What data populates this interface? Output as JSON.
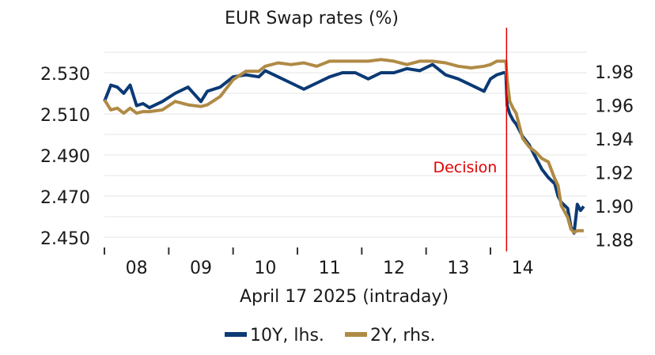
{
  "chart_data": {
    "type": "line",
    "title": "EUR Swap rates (%)",
    "xlabel": "April 17 2025 (intraday)",
    "x_ticks": [
      "08",
      "09",
      "10",
      "11",
      "12",
      "13",
      "14"
    ],
    "x_range_hours": [
      7.5,
      15.0
    ],
    "y_left": {
      "ticks": [
        "2.530",
        "2.510",
        "2.490",
        "2.470",
        "2.450"
      ],
      "range": [
        2.445,
        2.545
      ]
    },
    "y_right": {
      "ticks": [
        "1.98",
        "1.96",
        "1.94",
        "1.92",
        "1.90",
        "1.88"
      ],
      "range": [
        1.875,
        1.9975
      ]
    },
    "grid": true,
    "legend_position": "bottom",
    "annotation": {
      "text": "Decision",
      "x": 13.75,
      "color": "#e00000"
    },
    "series": [
      {
        "name": "10Y, lhs.",
        "axis": "left",
        "color": "#0b3a75",
        "points": [
          [
            7.5,
            2.516
          ],
          [
            7.6,
            2.524
          ],
          [
            7.7,
            2.523
          ],
          [
            7.8,
            2.52
          ],
          [
            7.9,
            2.524
          ],
          [
            8.0,
            2.514
          ],
          [
            8.1,
            2.515
          ],
          [
            8.2,
            2.513
          ],
          [
            8.4,
            2.516
          ],
          [
            8.6,
            2.52
          ],
          [
            8.8,
            2.523
          ],
          [
            9.0,
            2.516
          ],
          [
            9.1,
            2.521
          ],
          [
            9.3,
            2.523
          ],
          [
            9.5,
            2.528
          ],
          [
            9.7,
            2.529
          ],
          [
            9.9,
            2.528
          ],
          [
            10.0,
            2.531
          ],
          [
            10.2,
            2.528
          ],
          [
            10.4,
            2.525
          ],
          [
            10.6,
            2.522
          ],
          [
            10.8,
            2.525
          ],
          [
            11.0,
            2.528
          ],
          [
            11.2,
            2.53
          ],
          [
            11.4,
            2.53
          ],
          [
            11.6,
            2.527
          ],
          [
            11.8,
            2.53
          ],
          [
            12.0,
            2.53
          ],
          [
            12.2,
            2.532
          ],
          [
            12.4,
            2.531
          ],
          [
            12.6,
            2.534
          ],
          [
            12.8,
            2.529
          ],
          [
            13.0,
            2.527
          ],
          [
            13.2,
            2.524
          ],
          [
            13.4,
            2.521
          ],
          [
            13.5,
            2.527
          ],
          [
            13.6,
            2.529
          ],
          [
            13.7,
            2.53
          ],
          [
            13.74,
            2.53
          ],
          [
            13.76,
            2.514
          ],
          [
            13.8,
            2.51
          ],
          [
            13.85,
            2.507
          ],
          [
            13.9,
            2.505
          ],
          [
            14.0,
            2.499
          ],
          [
            14.1,
            2.495
          ],
          [
            14.2,
            2.489
          ],
          [
            14.3,
            2.483
          ],
          [
            14.4,
            2.479
          ],
          [
            14.5,
            2.476
          ],
          [
            14.55,
            2.47
          ],
          [
            14.6,
            2.467
          ],
          [
            14.7,
            2.464
          ],
          [
            14.75,
            2.455
          ],
          [
            14.8,
            2.452
          ],
          [
            14.85,
            2.466
          ],
          [
            14.9,
            2.463
          ],
          [
            14.95,
            2.465
          ]
        ]
      },
      {
        "name": "2Y, rhs.",
        "axis": "right",
        "color": "#b08a45",
        "points": [
          [
            7.5,
            1.963
          ],
          [
            7.6,
            1.957
          ],
          [
            7.7,
            1.958
          ],
          [
            7.8,
            1.955
          ],
          [
            7.9,
            1.958
          ],
          [
            8.0,
            1.955
          ],
          [
            8.1,
            1.956
          ],
          [
            8.2,
            1.956
          ],
          [
            8.4,
            1.957
          ],
          [
            8.6,
            1.962
          ],
          [
            8.8,
            1.96
          ],
          [
            9.0,
            1.959
          ],
          [
            9.1,
            1.96
          ],
          [
            9.3,
            1.965
          ],
          [
            9.5,
            1.975
          ],
          [
            9.7,
            1.98
          ],
          [
            9.9,
            1.98
          ],
          [
            10.0,
            1.983
          ],
          [
            10.2,
            1.985
          ],
          [
            10.4,
            1.984
          ],
          [
            10.6,
            1.985
          ],
          [
            10.8,
            1.983
          ],
          [
            11.0,
            1.986
          ],
          [
            11.2,
            1.986
          ],
          [
            11.4,
            1.986
          ],
          [
            11.6,
            1.986
          ],
          [
            11.8,
            1.987
          ],
          [
            12.0,
            1.986
          ],
          [
            12.2,
            1.984
          ],
          [
            12.4,
            1.986
          ],
          [
            12.6,
            1.986
          ],
          [
            12.8,
            1.985
          ],
          [
            13.0,
            1.983
          ],
          [
            13.2,
            1.982
          ],
          [
            13.4,
            1.983
          ],
          [
            13.5,
            1.984
          ],
          [
            13.6,
            1.986
          ],
          [
            13.7,
            1.986
          ],
          [
            13.74,
            1.986
          ],
          [
            13.76,
            1.975
          ],
          [
            13.8,
            1.962
          ],
          [
            13.85,
            1.958
          ],
          [
            13.9,
            1.955
          ],
          [
            14.0,
            1.94
          ],
          [
            14.1,
            1.935
          ],
          [
            14.2,
            1.932
          ],
          [
            14.3,
            1.928
          ],
          [
            14.4,
            1.926
          ],
          [
            14.5,
            1.916
          ],
          [
            14.55,
            1.912
          ],
          [
            14.6,
            1.9
          ],
          [
            14.7,
            1.893
          ],
          [
            14.75,
            1.886
          ],
          [
            14.8,
            1.884
          ],
          [
            14.85,
            1.885
          ],
          [
            14.9,
            1.885
          ],
          [
            14.95,
            1.885
          ]
        ]
      }
    ]
  }
}
